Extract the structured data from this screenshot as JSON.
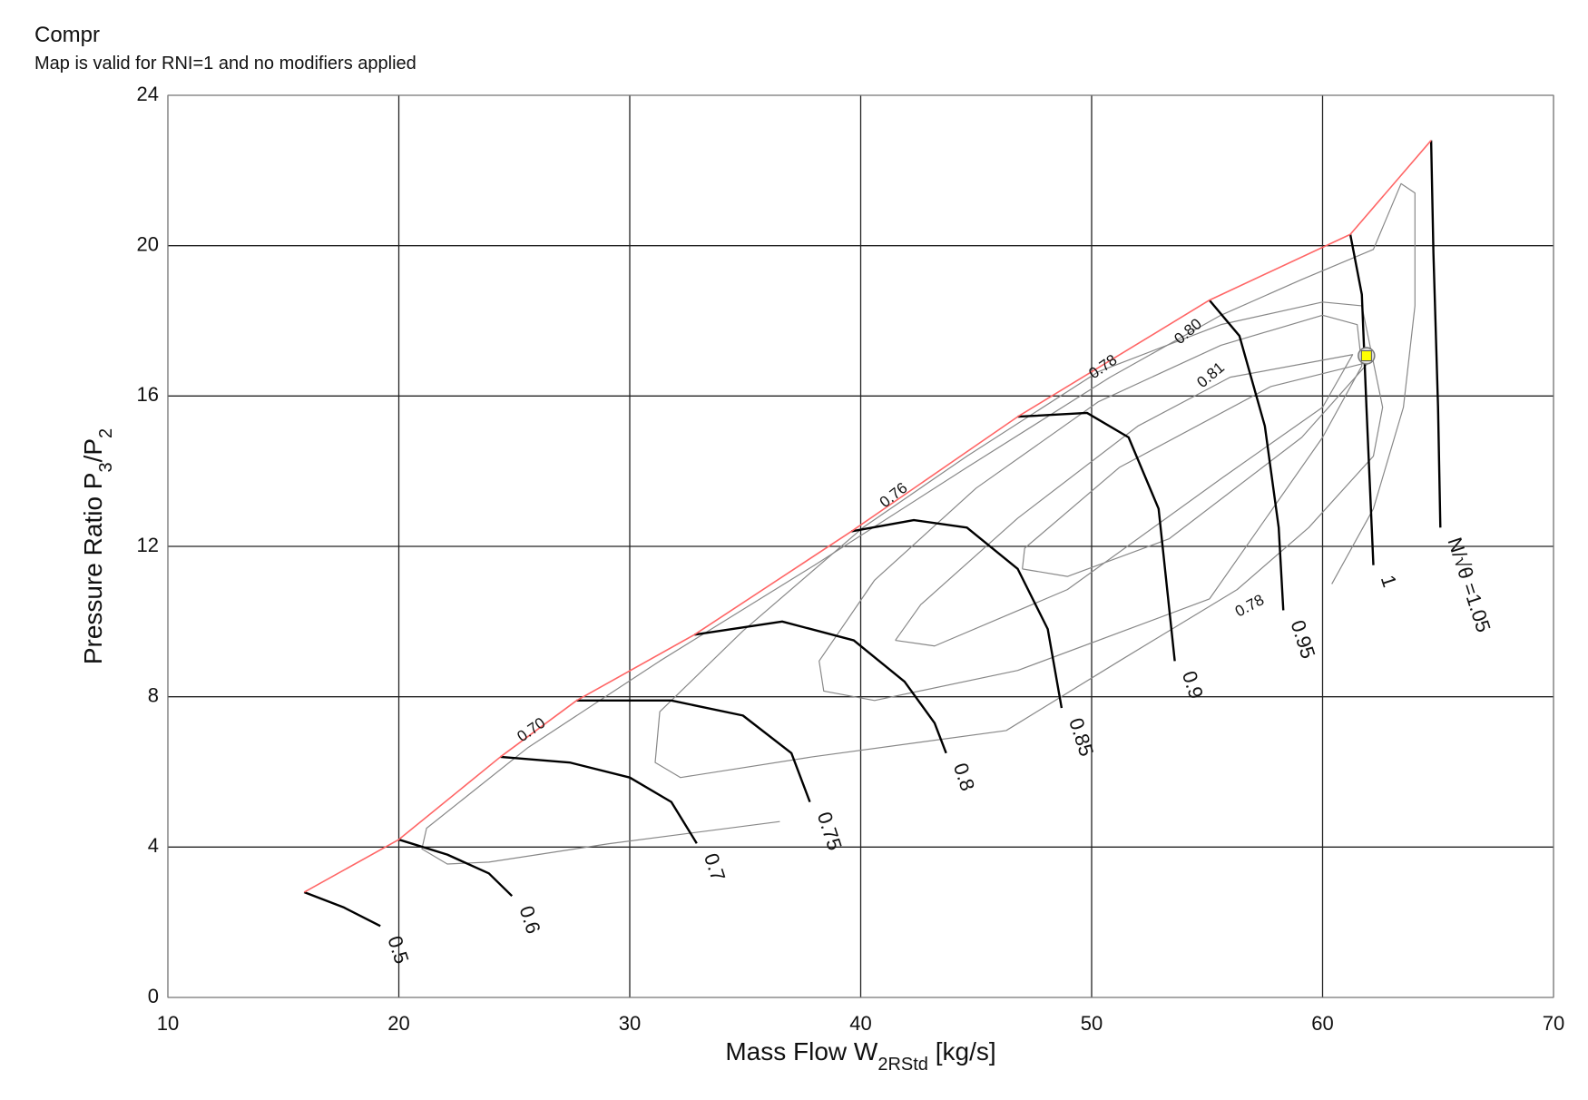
{
  "chart_data": {
    "type": "line",
    "title": "Compr",
    "subtitle": "Map is valid for RNI=1 and no modifiers applied",
    "xlabel": [
      {
        "text": "Mass Flow W"
      },
      {
        "sub": "2RStd"
      },
      {
        "text": " [kg/s]"
      }
    ],
    "ylabel": [
      {
        "text": "Pressure Ratio P"
      },
      {
        "sub": "3"
      },
      {
        "text": "/P"
      },
      {
        "sub": "2"
      }
    ],
    "xlim": [
      10,
      70
    ],
    "xticks": [
      10,
      20,
      30,
      40,
      50,
      60,
      70
    ],
    "ylim": [
      0,
      24
    ],
    "yticks": [
      0,
      4,
      8,
      12,
      16,
      20,
      24
    ],
    "grid": true,
    "surge_line": {
      "color": "#ff6666",
      "x": [
        15.9,
        20.0,
        24.4,
        27.7,
        32.8,
        39.6,
        46.8,
        55.1,
        61.2,
        64.7
      ],
      "y": [
        2.8,
        4.2,
        6.4,
        7.9,
        9.65,
        12.4,
        15.45,
        18.55,
        20.3,
        22.8
      ]
    },
    "speed_lines": [
      {
        "name": "0.5",
        "color": "#000000",
        "x": [
          15.9,
          17.6,
          19.2
        ],
        "y": [
          2.8,
          2.4,
          1.9
        ]
      },
      {
        "name": "0.6",
        "color": "#000000",
        "x": [
          20.0,
          22.1,
          23.9,
          24.9
        ],
        "y": [
          4.2,
          3.8,
          3.3,
          2.7
        ]
      },
      {
        "name": "0.7",
        "color": "#000000",
        "x": [
          24.4,
          27.4,
          30.0,
          31.8,
          32.9
        ],
        "y": [
          6.4,
          6.25,
          5.85,
          5.2,
          4.1
        ]
      },
      {
        "name": "0.75",
        "color": "#000000",
        "x": [
          27.7,
          31.8,
          34.9,
          37.0,
          37.8
        ],
        "y": [
          7.9,
          7.9,
          7.5,
          6.5,
          5.2
        ]
      },
      {
        "name": "0.8",
        "color": "#000000",
        "x": [
          32.8,
          36.6,
          39.7,
          41.9,
          43.2,
          43.7
        ],
        "y": [
          9.65,
          10.0,
          9.5,
          8.4,
          7.3,
          6.5
        ]
      },
      {
        "name": "0.85",
        "color": "#000000",
        "x": [
          39.6,
          42.3,
          44.6,
          46.8,
          48.1,
          48.7
        ],
        "y": [
          12.4,
          12.7,
          12.5,
          11.4,
          9.8,
          7.7
        ]
      },
      {
        "name": "0.9",
        "color": "#000000",
        "x": [
          46.8,
          49.8,
          51.6,
          52.9,
          53.6
        ],
        "y": [
          15.45,
          15.55,
          14.9,
          13.0,
          8.95
        ]
      },
      {
        "name": "0.95",
        "color": "#000000",
        "x": [
          55.1,
          56.4,
          57.5,
          58.1,
          58.3
        ],
        "y": [
          18.55,
          17.6,
          15.2,
          12.5,
          10.3
        ]
      },
      {
        "name": "1",
        "color": "#000000",
        "x": [
          61.2,
          61.7,
          61.9,
          62.2
        ],
        "y": [
          20.3,
          18.7,
          15.7,
          11.5
        ]
      },
      {
        "name": "N/√θ =1.05",
        "color": "#000000",
        "x": [
          64.7,
          64.8,
          65.0,
          65.1
        ],
        "y": [
          22.8,
          19.8,
          15.7,
          12.5
        ]
      }
    ],
    "efficiency_contours": [
      {
        "name": "0.70",
        "color": "#888888",
        "x": [
          36.5,
          29.1,
          23.9,
          22.1,
          21.0,
          21.2,
          25.6,
          31.3,
          38.0,
          44.6,
          50.8,
          55.6,
          59.1,
          62.2,
          63.4,
          64.0,
          64.0,
          63.5,
          62.2,
          60.4
        ],
        "y": [
          4.68,
          4.09,
          3.6,
          3.55,
          3.95,
          4.5,
          6.65,
          8.95,
          11.5,
          14.1,
          16.5,
          18.15,
          19.1,
          19.9,
          21.65,
          21.4,
          18.4,
          15.7,
          13.0,
          11.0
        ]
      },
      {
        "name": "0.76",
        "color": "#888888",
        "x": [
          46.3,
          37.9,
          32.2,
          31.1,
          31.3,
          34.9,
          40.1,
          44.6,
          50.3,
          55.6,
          60.0,
          61.7,
          62.6,
          62.2,
          59.4,
          56.3,
          51.2,
          46.3
        ],
        "y": [
          7.1,
          6.4,
          5.85,
          6.25,
          7.6,
          9.75,
          12.5,
          14.4,
          16.65,
          17.9,
          18.5,
          18.4,
          15.7,
          14.4,
          12.5,
          10.85,
          8.95,
          7.1
        ]
      },
      {
        "name": "0.78",
        "color": "#888888",
        "x": [
          55.1,
          46.8,
          40.6,
          38.4,
          38.2,
          40.6,
          45.0,
          50.3,
          55.6,
          60.0,
          61.5,
          61.7,
          60.0,
          55.1
        ],
        "y": [
          10.6,
          8.7,
          7.9,
          8.15,
          8.95,
          11.1,
          13.55,
          15.85,
          17.35,
          18.15,
          17.9,
          16.8,
          14.9,
          10.6
        ]
      },
      {
        "name": "0.80",
        "color": "#888888",
        "x": [
          41.5,
          42.6,
          46.8,
          52.0,
          56.0,
          61.3,
          60.0,
          55.6,
          48.95,
          43.2,
          41.5
        ],
        "y": [
          9.5,
          10.45,
          12.75,
          15.2,
          16.5,
          17.1,
          15.7,
          13.8,
          10.85,
          9.35,
          9.5
        ]
      },
      {
        "name": "0.81",
        "color": "#888888",
        "x": [
          47.0,
          48.95,
          53.35,
          59.1,
          62.0,
          57.75,
          51.2,
          47.1,
          47.0
        ],
        "y": [
          11.4,
          11.2,
          12.2,
          14.9,
          16.9,
          16.25,
          14.1,
          11.95,
          11.4
        ]
      }
    ],
    "operating_point": {
      "x": 61.9,
      "y": 17.07,
      "color": "#ffff00"
    }
  }
}
